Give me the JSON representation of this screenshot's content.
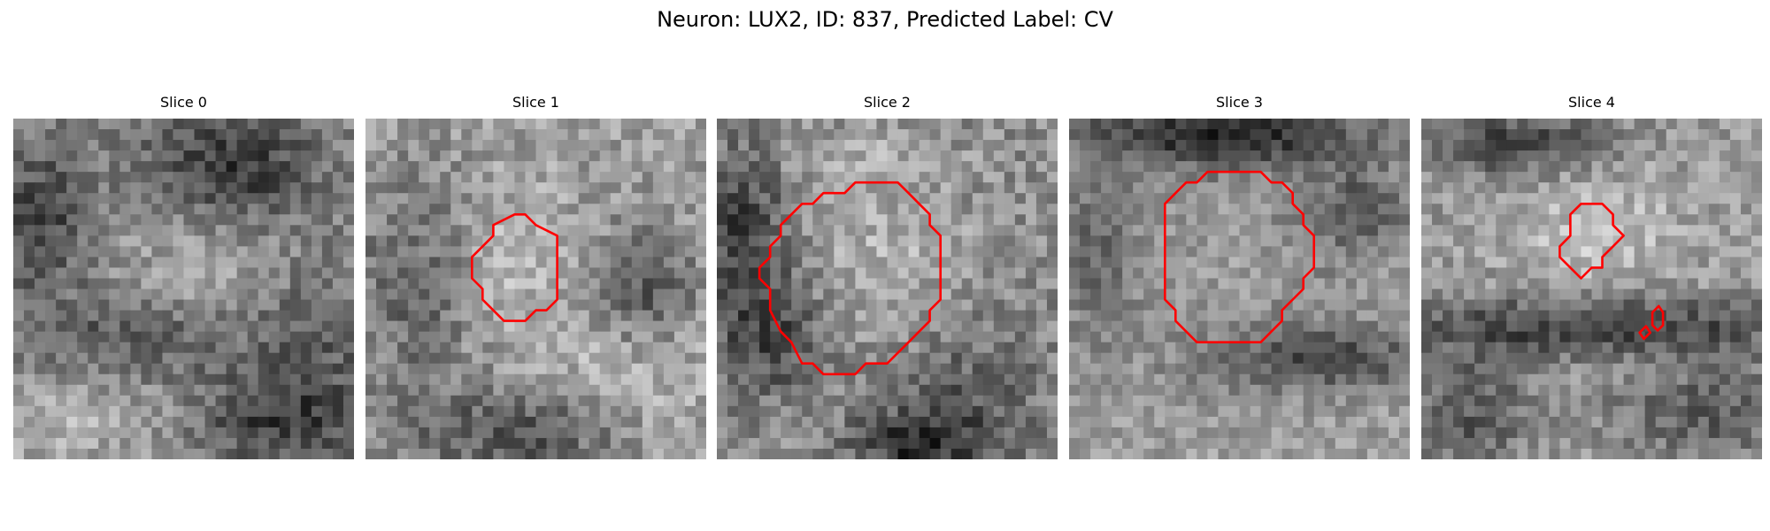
{
  "figure": {
    "title": "Neuron: LUX2, ID: 837, Predicted Label: CV"
  },
  "contour_color": "#ff0000",
  "colormap": "grayscale",
  "panels": [
    {
      "title": "Slice 0"
    },
    {
      "title": "Slice 1"
    },
    {
      "title": "Slice 2"
    },
    {
      "title": "Slice 3"
    },
    {
      "title": "Slice 4"
    }
  ]
}
